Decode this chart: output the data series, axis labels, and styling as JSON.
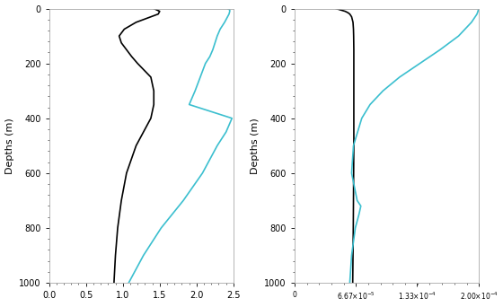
{
  "left_black_depth": [
    0,
    5,
    10,
    20,
    30,
    50,
    75,
    100,
    125,
    150,
    175,
    200,
    250,
    300,
    350,
    400,
    450,
    500,
    600,
    700,
    800,
    900,
    1000
  ],
  "left_black_x": [
    1.42,
    1.46,
    1.5,
    1.48,
    1.38,
    1.18,
    1.02,
    0.95,
    0.98,
    1.05,
    1.12,
    1.2,
    1.38,
    1.42,
    1.42,
    1.38,
    1.28,
    1.18,
    1.05,
    0.98,
    0.93,
    0.9,
    0.88
  ],
  "left_blue_depth": [
    0,
    5,
    10,
    20,
    30,
    50,
    75,
    100,
    125,
    150,
    175,
    200,
    250,
    300,
    350,
    400,
    450,
    500,
    600,
    700,
    800,
    900,
    1000
  ],
  "left_blue_x": [
    2.42,
    2.45,
    2.45,
    2.44,
    2.42,
    2.38,
    2.32,
    2.28,
    2.25,
    2.22,
    2.18,
    2.12,
    2.05,
    1.98,
    1.9,
    2.48,
    2.4,
    2.28,
    2.08,
    1.82,
    1.52,
    1.28,
    1.08
  ],
  "right_black_depth": [
    0,
    5,
    10,
    15,
    20,
    30,
    50,
    75,
    100,
    125,
    150,
    175,
    200,
    300,
    400,
    500,
    600,
    700,
    800,
    900,
    1000
  ],
  "right_black_x": [
    4.5e-05,
    5e-05,
    5.5e-05,
    5.8e-05,
    6e-05,
    6.2e-05,
    6.35e-05,
    6.4e-05,
    6.42e-05,
    6.43e-05,
    6.44e-05,
    6.44e-05,
    6.44e-05,
    6.44e-05,
    6.44e-05,
    6.44e-05,
    6.42e-05,
    6.4e-05,
    6.38e-05,
    6.35e-05,
    6.32e-05
  ],
  "right_blue_depth": [
    0,
    20,
    50,
    100,
    150,
    200,
    250,
    300,
    350,
    400,
    500,
    600,
    700,
    720,
    750,
    800,
    900,
    1000
  ],
  "right_blue_x": [
    0.0002,
    0.000198,
    0.000192,
    0.000178,
    0.000158,
    0.000136,
    0.000114,
    9.6e-05,
    8.2e-05,
    7.3e-05,
    6.4e-05,
    6.2e-05,
    6.8e-05,
    7.2e-05,
    7e-05,
    6.6e-05,
    6.2e-05,
    6e-05
  ],
  "depth_min": 0,
  "depth_max": 1000,
  "left_xlim": [
    0.0,
    2.5
  ],
  "left_xticks": [
    0.0,
    0.5,
    1.0,
    1.5,
    2.0,
    2.5
  ],
  "left_xticklabels": [
    "0.0",
    "0.5",
    "1.0",
    "1.5",
    "2.0",
    "2.5"
  ],
  "right_xlim": [
    0,
    0.0002
  ],
  "right_xticks": [
    0,
    6.67e-05,
    0.000133,
    0.0002
  ],
  "right_xticklabels": [
    "0",
    "6.67×10⁻⁵",
    "1.33×10⁻⁴",
    "2.00×10⁻⁴"
  ],
  "yticks": [
    0,
    200,
    400,
    600,
    800,
    1000
  ],
  "ylabel": "Depths (m)",
  "black_color": "#000000",
  "blue_color": "#3BBFCF",
  "background_color": "#ffffff",
  "linewidth": 1.2,
  "spine_color": "#aaaaaa",
  "tick_fontsize": 7,
  "label_fontsize": 8
}
